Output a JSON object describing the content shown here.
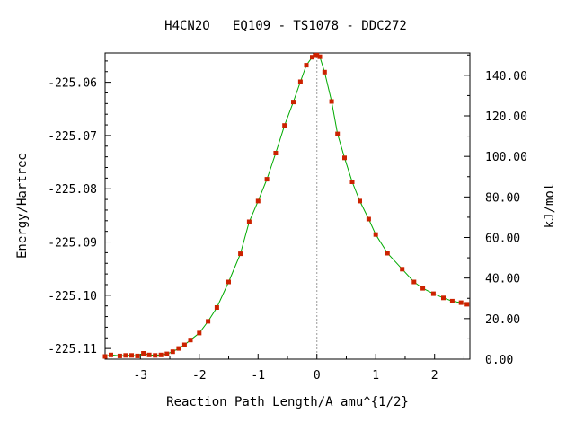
{
  "chart_data": {
    "type": "line",
    "title": "H4CN2O   EQ109 - TS1078 - DDC272",
    "xlabel": "Reaction Path Length/A amu^{1/2}",
    "ylabel": "Energy/Hartree",
    "y2label": "kJ/mol",
    "xlim": [
      -3.6,
      2.6
    ],
    "ylim": [
      -225.112,
      -225.0545
    ],
    "y2lim": [
      0.0,
      151.0
    ],
    "x_ticks": [
      -3,
      -2,
      -1,
      0,
      1,
      2
    ],
    "x_tick_labels": [
      "-3",
      "-2",
      "-1",
      "0",
      "1",
      "2"
    ],
    "y_ticks": [
      -225.06,
      -225.07,
      -225.08,
      -225.09,
      -225.1,
      -225.11
    ],
    "y_tick_labels": [
      "-225.06",
      "-225.07",
      "-225.08",
      "-225.09",
      "-225.10",
      "-225.11"
    ],
    "y2_ticks": [
      0,
      20,
      40,
      60,
      80,
      100,
      120,
      140
    ],
    "y2_tick_labels": [
      "0.00",
      "20.00",
      "40.00",
      "60.00",
      "80.00",
      "100.00",
      "120.00",
      "140.00"
    ],
    "grid": false,
    "ts_marker_x": 0.0,
    "colors": {
      "line": "#00aa00",
      "points": "#cc2200",
      "ts_marker": "#999999"
    },
    "series": [
      {
        "x": [
          -3.6,
          -3.5,
          -3.35,
          -3.25,
          -3.15,
          -3.05,
          -2.95,
          -2.85,
          -2.75,
          -2.65,
          -2.55,
          -2.45,
          -2.35,
          -2.25,
          -2.15,
          -2.0,
          -1.85,
          -1.7,
          -1.5,
          -1.3,
          -1.15,
          -1.0,
          -0.85,
          -0.7,
          -0.55,
          -0.4,
          -0.28,
          -0.18,
          -0.08,
          -0.03,
          0.0,
          0.05,
          0.13,
          0.25,
          0.35,
          0.47,
          0.6,
          0.73,
          0.88,
          1.0,
          1.2,
          1.45,
          1.65,
          1.8,
          1.98,
          2.15,
          2.3,
          2.45,
          2.55
        ],
        "y": [
          -225.1115,
          -225.1112,
          -225.1114,
          -225.1113,
          -225.1113,
          -225.1114,
          -225.1109,
          -225.1112,
          -225.1113,
          -225.1112,
          -225.111,
          -225.1106,
          -225.11,
          -225.1093,
          -225.1084,
          -225.1071,
          -225.1049,
          -225.1023,
          -225.0975,
          -225.0922,
          -225.0862,
          -225.0823,
          -225.0782,
          -225.0733,
          -225.0681,
          -225.0637,
          -225.0599,
          -225.0568,
          -225.0553,
          -225.055,
          -225.0549,
          -225.0552,
          -225.0581,
          -225.0636,
          -225.0697,
          -225.0742,
          -225.0787,
          -225.0823,
          -225.0857,
          -225.0886,
          -225.0921,
          -225.0951,
          -225.0975,
          -225.0987,
          -225.0997,
          -225.1005,
          -225.1011,
          -225.1014,
          -225.1017
        ]
      }
    ]
  }
}
